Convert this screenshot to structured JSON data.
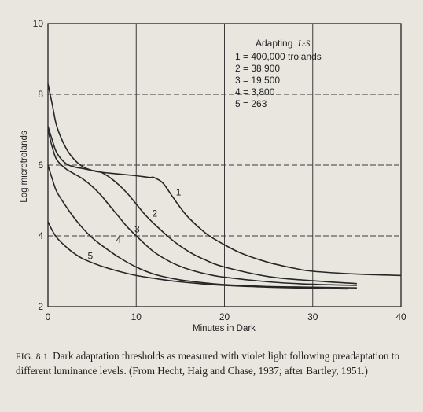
{
  "chart_data": {
    "type": "line",
    "xlabel": "Minutes in Dark",
    "ylabel": "Log microtrolands",
    "xlim": [
      0,
      40
    ],
    "ylim": [
      2,
      10
    ],
    "xticks": [
      0,
      10,
      20,
      30,
      40
    ],
    "yticks": [
      2,
      4,
      6,
      8,
      10
    ],
    "grid": true,
    "legend": {
      "title_prefix": "Adapting",
      "title_italic": "L·S",
      "entries": [
        "1 = 400,000 trolands",
        "2 = 38,900",
        "3 = 19,500",
        "4 = 3,800",
        "5 = 263"
      ],
      "placement": "top-right"
    },
    "series": [
      {
        "name": "1",
        "label_point": [
          14.8,
          5.15
        ],
        "points": [
          [
            0,
            8.3
          ],
          [
            0.5,
            7.7
          ],
          [
            1,
            7.1
          ],
          [
            2,
            6.5
          ],
          [
            3,
            6.15
          ],
          [
            4,
            5.95
          ],
          [
            5,
            5.85
          ],
          [
            6,
            5.8
          ],
          [
            8,
            5.75
          ],
          [
            10,
            5.7
          ],
          [
            11.5,
            5.65
          ],
          [
            12,
            5.65
          ],
          [
            13,
            5.5
          ],
          [
            14,
            5.15
          ],
          [
            15,
            4.8
          ],
          [
            16,
            4.5
          ],
          [
            18,
            4.05
          ],
          [
            20,
            3.75
          ],
          [
            22,
            3.5
          ],
          [
            25,
            3.25
          ],
          [
            28,
            3.08
          ],
          [
            30,
            3.0
          ],
          [
            35,
            2.92
          ],
          [
            40,
            2.88
          ]
        ]
      },
      {
        "name": "2",
        "label_point": [
          12.1,
          4.55
        ],
        "points": [
          [
            0,
            7.1
          ],
          [
            0.5,
            6.7
          ],
          [
            1,
            6.35
          ],
          [
            2,
            6.05
          ],
          [
            3,
            5.95
          ],
          [
            4,
            5.9
          ],
          [
            5,
            5.85
          ],
          [
            6,
            5.8
          ],
          [
            7,
            5.65
          ],
          [
            8,
            5.45
          ],
          [
            9,
            5.2
          ],
          [
            10,
            4.9
          ],
          [
            11,
            4.6
          ],
          [
            12,
            4.35
          ],
          [
            14,
            3.9
          ],
          [
            16,
            3.55
          ],
          [
            18,
            3.3
          ],
          [
            20,
            3.12
          ],
          [
            25,
            2.85
          ],
          [
            30,
            2.73
          ],
          [
            35,
            2.65
          ]
        ]
      },
      {
        "name": "3",
        "label_point": [
          10.1,
          4.1
        ],
        "points": [
          [
            0,
            7.0
          ],
          [
            0.5,
            6.5
          ],
          [
            1,
            6.15
          ],
          [
            2,
            5.9
          ],
          [
            3,
            5.75
          ],
          [
            4,
            5.6
          ],
          [
            5,
            5.4
          ],
          [
            6,
            5.15
          ],
          [
            7,
            4.85
          ],
          [
            8,
            4.55
          ],
          [
            9,
            4.25
          ],
          [
            10,
            4.0
          ],
          [
            12,
            3.55
          ],
          [
            14,
            3.25
          ],
          [
            16,
            3.05
          ],
          [
            18,
            2.92
          ],
          [
            20,
            2.83
          ],
          [
            25,
            2.7
          ],
          [
            30,
            2.63
          ],
          [
            35,
            2.6
          ]
        ]
      },
      {
        "name": "4",
        "label_point": [
          8.0,
          3.8
        ],
        "points": [
          [
            0,
            6.0
          ],
          [
            0.5,
            5.6
          ],
          [
            1,
            5.25
          ],
          [
            2,
            4.85
          ],
          [
            3,
            4.5
          ],
          [
            4,
            4.2
          ],
          [
            5,
            3.95
          ],
          [
            6,
            3.75
          ],
          [
            8,
            3.4
          ],
          [
            10,
            3.12
          ],
          [
            12,
            2.92
          ],
          [
            14,
            2.8
          ],
          [
            16,
            2.72
          ],
          [
            20,
            2.62
          ],
          [
            25,
            2.57
          ],
          [
            30,
            2.55
          ],
          [
            35,
            2.53
          ]
        ]
      },
      {
        "name": "5",
        "label_point": [
          4.8,
          3.35
        ],
        "points": [
          [
            0,
            4.4
          ],
          [
            0.5,
            4.15
          ],
          [
            1,
            3.95
          ],
          [
            2,
            3.7
          ],
          [
            3,
            3.5
          ],
          [
            4,
            3.35
          ],
          [
            6,
            3.15
          ],
          [
            8,
            3.0
          ],
          [
            10,
            2.88
          ],
          [
            12,
            2.8
          ],
          [
            15,
            2.7
          ],
          [
            20,
            2.6
          ],
          [
            25,
            2.55
          ],
          [
            30,
            2.52
          ],
          [
            34,
            2.5
          ]
        ]
      }
    ]
  },
  "caption": {
    "label": "FIG. 8.1",
    "text": "Dark adaptation thresholds as measured with violet light following preadaptation to different luminance levels. (From Hecht, Haig and Chase, 1937; after Bartley, 1951.)"
  }
}
